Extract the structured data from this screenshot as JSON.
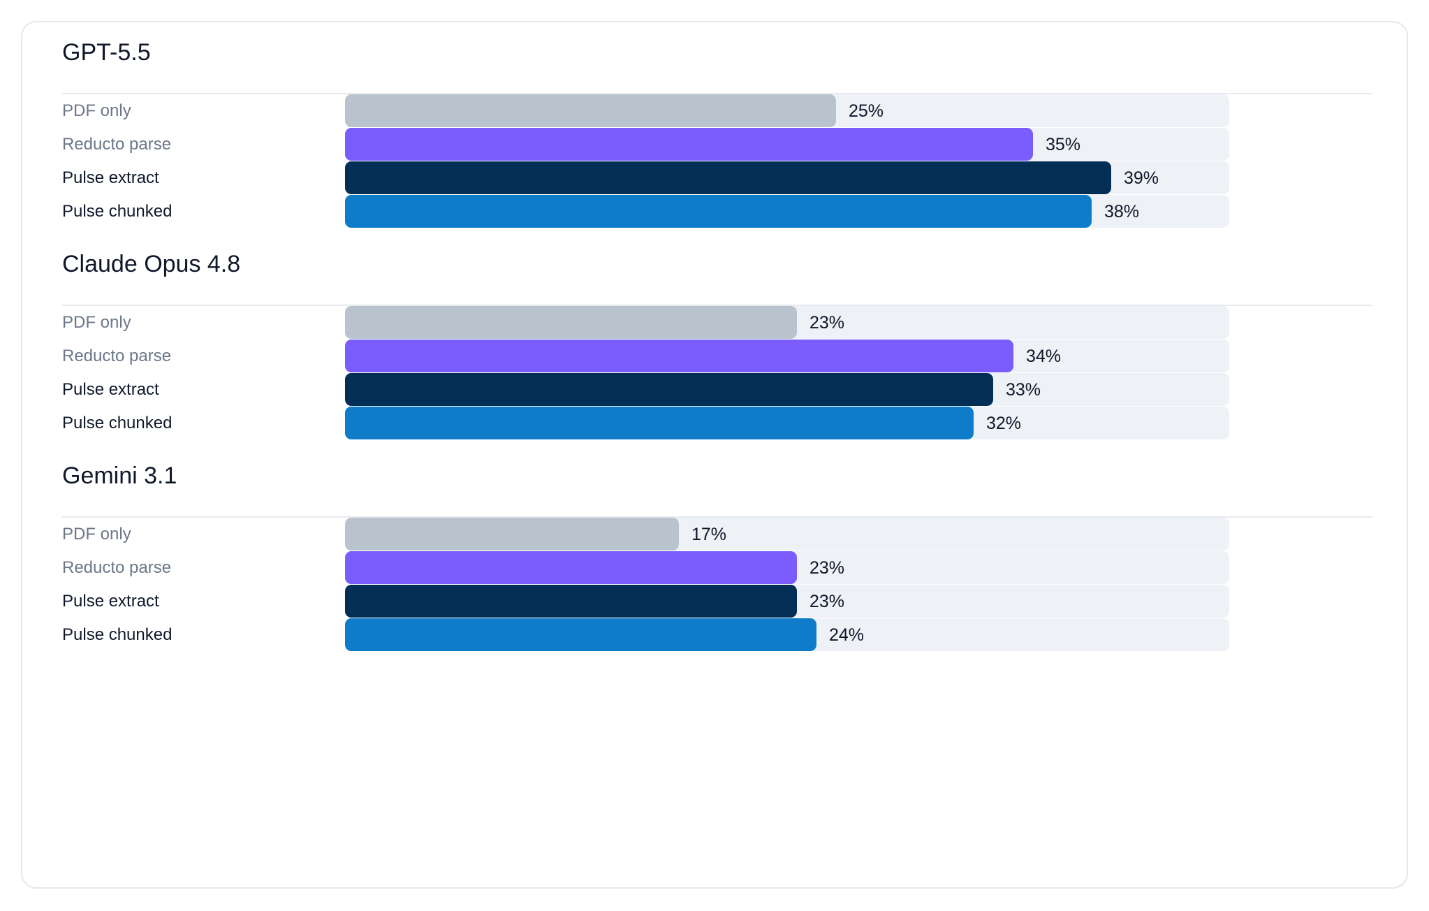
{
  "chart_data": {
    "type": "bar",
    "orientation": "horizontal",
    "xlim": [
      0,
      45
    ],
    "grid": false,
    "legend": "none",
    "value_suffix": "%",
    "series_styles": [
      {
        "name": "PDF only",
        "color": "#b9c3cd",
        "label_style": "muted"
      },
      {
        "name": "Reducto parse",
        "color": "#7b5cff",
        "label_style": "muted"
      },
      {
        "name": "Pulse extract",
        "color": "#032f57",
        "label_style": "dark"
      },
      {
        "name": "Pulse chunked",
        "color": "#0e7cc8",
        "label_style": "dark"
      }
    ],
    "groups": [
      {
        "title": "GPT-5.5",
        "bars": [
          {
            "label": "PDF only",
            "value": 25
          },
          {
            "label": "Reducto parse",
            "value": 35
          },
          {
            "label": "Pulse extract",
            "value": 39
          },
          {
            "label": "Pulse chunked",
            "value": 38
          }
        ]
      },
      {
        "title": "Claude Opus 4.8",
        "bars": [
          {
            "label": "PDF only",
            "value": 23
          },
          {
            "label": "Reducto parse",
            "value": 34
          },
          {
            "label": "Pulse extract",
            "value": 33
          },
          {
            "label": "Pulse chunked",
            "value": 32
          }
        ]
      },
      {
        "title": "Gemini 3.1",
        "bars": [
          {
            "label": "PDF only",
            "value": 17
          },
          {
            "label": "Reducto parse",
            "value": 23
          },
          {
            "label": "Pulse extract",
            "value": 23
          },
          {
            "label": "Pulse chunked",
            "value": 24
          }
        ]
      }
    ]
  }
}
